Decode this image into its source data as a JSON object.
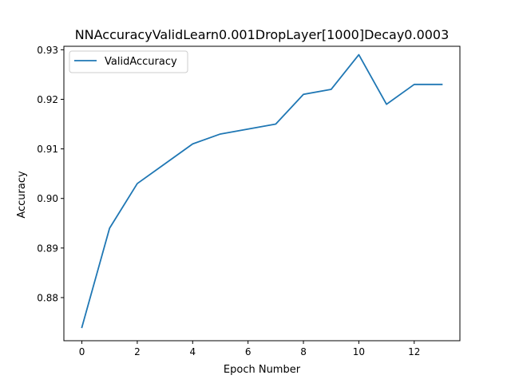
{
  "chart_data": {
    "type": "line",
    "title": "NNAccuracyValidLearn0.001DropLayer[1000]Decay0.0003",
    "xlabel": "Epoch Number",
    "ylabel": "Accuracy",
    "x": [
      0,
      1,
      2,
      3,
      4,
      5,
      6,
      7,
      8,
      9,
      10,
      11,
      12,
      13
    ],
    "series": [
      {
        "name": "ValidAccuracy",
        "color": "#1f77b4",
        "values": [
          0.874,
          0.894,
          0.903,
          0.907,
          0.911,
          0.913,
          0.914,
          0.915,
          0.921,
          0.922,
          0.929,
          0.919,
          0.923,
          0.923
        ]
      }
    ],
    "xlim": [
      -0.65,
      13.65
    ],
    "ylim": [
      0.8713,
      0.9307
    ],
    "xticks": [
      0,
      2,
      4,
      6,
      8,
      10,
      12
    ],
    "xtick_labels": [
      "0",
      "2",
      "4",
      "6",
      "8",
      "10",
      "12"
    ],
    "yticks": [
      0.88,
      0.89,
      0.9,
      0.91,
      0.92,
      0.93
    ],
    "ytick_labels": [
      "0.88",
      "0.89",
      "0.90",
      "0.91",
      "0.92",
      "0.93"
    ],
    "grid": false,
    "legend_position": "top-left"
  }
}
